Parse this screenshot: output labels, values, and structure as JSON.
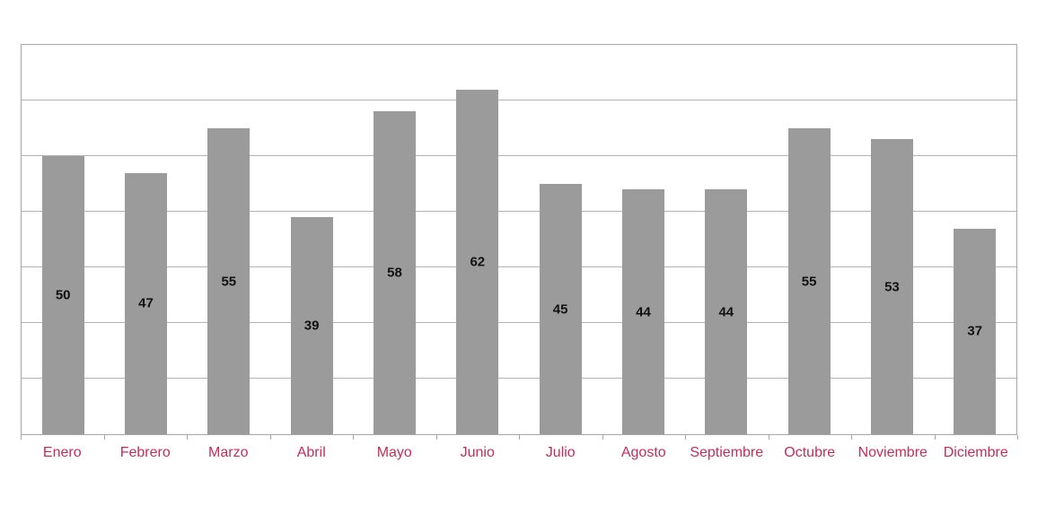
{
  "chart_data": {
    "type": "bar",
    "title": "",
    "xlabel": "",
    "ylabel": "",
    "categories": [
      "Enero",
      "Febrero",
      "Marzo",
      "Abril",
      "Mayo",
      "Junio",
      "Julio",
      "Agosto",
      "Septiembre",
      "Octubre",
      "Noviembre",
      "Diciembre"
    ],
    "values": [
      50,
      47,
      55,
      39,
      58,
      62,
      45,
      44,
      44,
      55,
      53,
      37
    ],
    "ylim": [
      0,
      70
    ],
    "gridline_step": 10,
    "grid": "horizontal",
    "y_tick_labels_visible": false,
    "legend": "none",
    "data_label_position": "center-inside",
    "colors": {
      "bar_fill": "#9B9B9B",
      "data_label": "#111111",
      "category_label": "#C22E5C",
      "gridline": "#B3B3B3",
      "plot_border": "#A6A6A6",
      "axis_tick": "#A6A6A6",
      "background": "#FFFFFF"
    }
  }
}
